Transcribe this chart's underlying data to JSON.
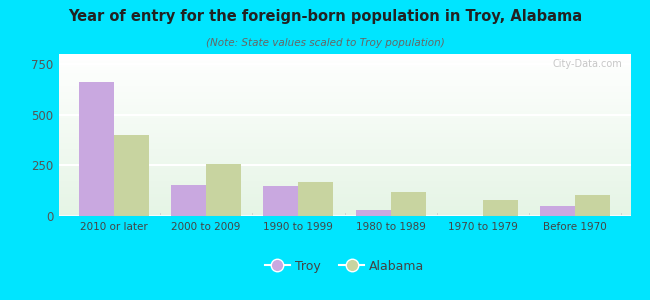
{
  "title": "Year of entry for the foreign-born population in Troy, Alabama",
  "subtitle": "(Note: State values scaled to Troy population)",
  "categories": [
    "2010 or later",
    "2000 to 2009",
    "1990 to 1999",
    "1980 to 1989",
    "1970 to 1979",
    "Before 1970"
  ],
  "troy_values": [
    660,
    155,
    150,
    30,
    0,
    50
  ],
  "alabama_values": [
    400,
    255,
    170,
    120,
    80,
    105
  ],
  "troy_color": "#c9a8e0",
  "alabama_color": "#c8d4a0",
  "background_outer": "#00e5ff",
  "ylim": [
    0,
    800
  ],
  "yticks": [
    0,
    250,
    500,
    750
  ],
  "watermark": "City-Data.com",
  "legend_troy": "Troy",
  "legend_alabama": "Alabama",
  "bar_width": 0.38
}
